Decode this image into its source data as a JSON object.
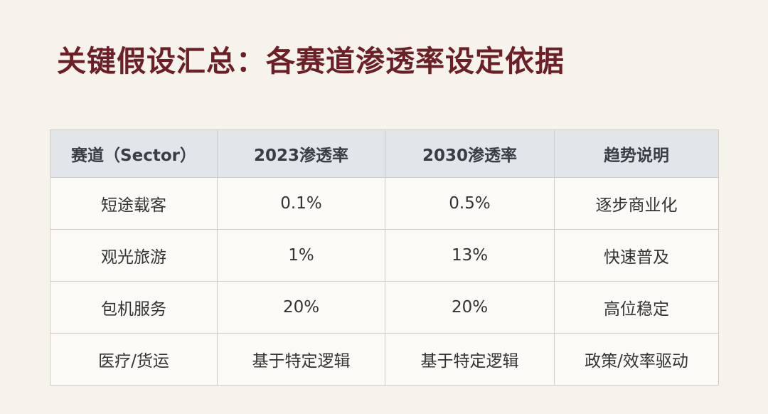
{
  "title": "关键假设汇总：各赛道渗透率设定依据",
  "table": {
    "headers": [
      "赛道（Sector）",
      "2023渗透率",
      "2030渗透率",
      "趋势说明"
    ],
    "rows": [
      [
        "短途载客",
        "0.1%",
        "0.5%",
        "逐步商业化"
      ],
      [
        "观光旅游",
        "1%",
        "13%",
        "快速普及"
      ],
      [
        "包机服务",
        "20%",
        "20%",
        "高位稳定"
      ],
      [
        "医疗/货运",
        "基于特定逻辑",
        "基于特定逻辑",
        "政策/效率驱动"
      ]
    ]
  },
  "colors": {
    "title": "#6b1f26",
    "header_bg": "#e2e5ea",
    "page_bg": "#f6f2ec"
  }
}
